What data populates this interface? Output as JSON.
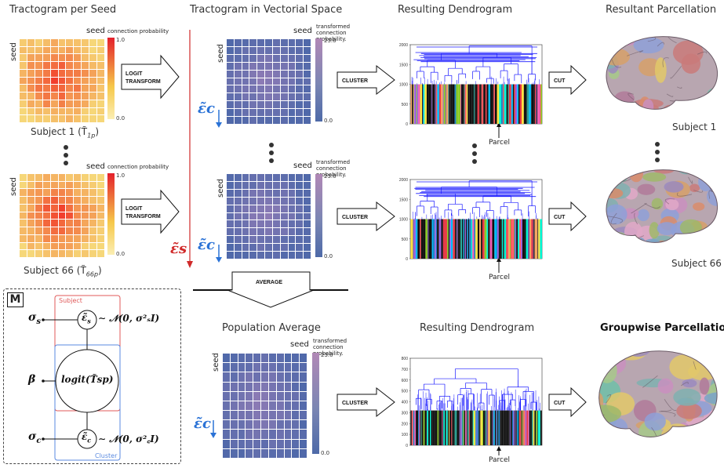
{
  "titles": {
    "tractogram_per_seed": "Tractogram per Seed",
    "tractogram_vectorial": "Tractogram in Vectorial Space",
    "resulting_dendrogram": "Resulting Dendrogram",
    "resultant_parcellation": "Resultant Parcellation",
    "population_average": "Population Average",
    "resulting_dendrogram_2": "Resulting Dendrogram",
    "groupwise_parcellation": "Groupwise Parcellation"
  },
  "labels": {
    "seed": "seed",
    "connection_probability": "connection probability",
    "transformed_connection_probability": "transformed connection probability.",
    "logit_transform": [
      "LOGIT",
      "TRANSFORM"
    ],
    "cluster": "CLUSTER",
    "cut": "CUT",
    "average": "AVERAGE",
    "parcel": "Parcel",
    "subject1_caption": "Subject 1 (T̃",
    "subject1_sub": "1p",
    "subject66_caption": "Subject 66 (T̃",
    "subject66_sub": "66p",
    "caption_close": ")",
    "subject_1": "Subject 1",
    "subject_66": "Subject 66"
  },
  "colorbars": {
    "probability": {
      "max": "1.0",
      "min": "0.0"
    },
    "transformed": {
      "max": "23.0",
      "min": "0.0"
    }
  },
  "dendrogram_axes": {
    "subject": [
      "2000",
      "1500",
      "1000",
      "500",
      "0"
    ],
    "group": [
      "800",
      "700",
      "600",
      "500",
      "400",
      "300",
      "200",
      "100",
      "0"
    ]
  },
  "model": {
    "box_label": "M",
    "subject_plate": "Subject",
    "cluster_plate": "Cluster",
    "sigma_s": "σ",
    "sigma_s_sub": "s",
    "sigma_c": "σ",
    "sigma_c_sub": "c",
    "beta": "β",
    "eps_s_eq": "∼ 𝒩(0, σ²ₛI)",
    "eps_c_eq": "∼ 𝒩(0, σ²꜀I)",
    "logit_node": "logit(T̃sp)"
  },
  "epsilon": {
    "eps_c": "ε̃c",
    "eps_s": "ε̃s"
  },
  "colors": {
    "eps_c": "#2a72d6",
    "eps_s": "#d02a2a",
    "subject_plate": "#e05a5a",
    "cluster_plate": "#5a8ae0",
    "dendrogram": "#1a1aff"
  }
}
